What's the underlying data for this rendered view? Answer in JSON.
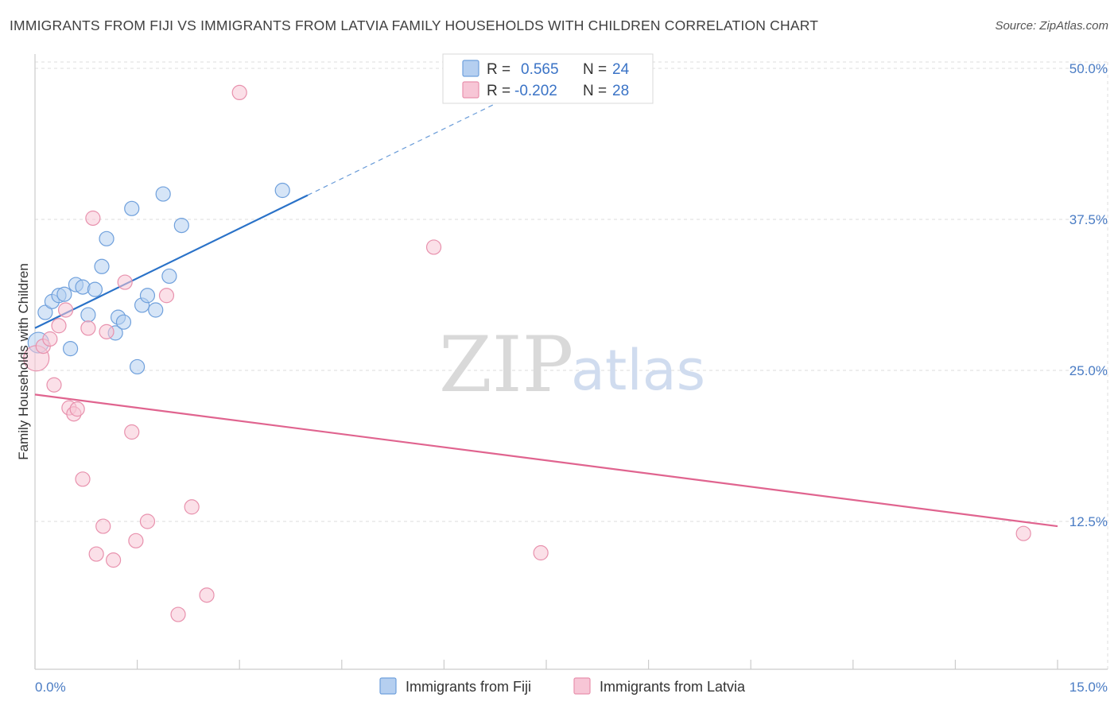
{
  "chart_data": {
    "type": "scatter",
    "title": "IMMIGRANTS FROM FIJI VS IMMIGRANTS FROM LATVIA FAMILY HOUSEHOLDS WITH CHILDREN CORRELATION CHART",
    "source": "Source: ZipAtlas.com",
    "xlabel": "",
    "ylabel": "Family Households with Children",
    "xlim": [
      0,
      15
    ],
    "ylim": [
      0,
      52
    ],
    "x_tick_labels": {
      "min": "0.0%",
      "max": "15.0%"
    },
    "x_minor_ticks": [
      0,
      1.5,
      3,
      4.5,
      6,
      7.5,
      9,
      10.5,
      12,
      13.5,
      15
    ],
    "y_ticks": [
      {
        "value": 12.5,
        "label": "12.5%"
      },
      {
        "value": 25.0,
        "label": "25.0%"
      },
      {
        "value": 37.5,
        "label": "37.5%"
      },
      {
        "value": 50.0,
        "label": "50.0%"
      }
    ],
    "grid": true,
    "watermark": {
      "zip": "ZIP",
      "atlas": "atlas"
    },
    "legend": {
      "rows": [
        {
          "r_label": "R =",
          "r_value": "0.565",
          "n_label": "N =",
          "n_value": "24"
        },
        {
          "r_label": "R =",
          "r_value": "-0.202",
          "n_label": "N =",
          "n_value": "28"
        }
      ]
    },
    "series": [
      {
        "name": "Immigrants from Fiji",
        "color": "#6fa0dc",
        "fill": "#b5cff0",
        "line_color": "#2a72c8",
        "trend": {
          "x_start": 0,
          "y_start": 28.5,
          "x_solid_end": 4.0,
          "y_solid_end": 39.5,
          "x_dash_end": 7.6,
          "y_dash_end": 49.4
        },
        "points": [
          {
            "x": 0.05,
            "y": 27.3,
            "r": 13
          },
          {
            "x": 0.15,
            "y": 29.8,
            "r": 9
          },
          {
            "x": 0.25,
            "y": 30.7,
            "r": 9
          },
          {
            "x": 0.35,
            "y": 31.2,
            "r": 9
          },
          {
            "x": 0.43,
            "y": 31.3,
            "r": 9
          },
          {
            "x": 0.52,
            "y": 26.8,
            "r": 9
          },
          {
            "x": 0.6,
            "y": 32.1,
            "r": 9
          },
          {
            "x": 0.7,
            "y": 31.9,
            "r": 9
          },
          {
            "x": 0.78,
            "y": 29.6,
            "r": 9
          },
          {
            "x": 0.88,
            "y": 31.7,
            "r": 9
          },
          {
            "x": 0.98,
            "y": 33.6,
            "r": 9
          },
          {
            "x": 1.05,
            "y": 35.9,
            "r": 9
          },
          {
            "x": 1.18,
            "y": 28.1,
            "r": 9
          },
          {
            "x": 1.22,
            "y": 29.4,
            "r": 9
          },
          {
            "x": 1.3,
            "y": 29.0,
            "r": 9
          },
          {
            "x": 1.42,
            "y": 38.4,
            "r": 9
          },
          {
            "x": 1.5,
            "y": 25.3,
            "r": 9
          },
          {
            "x": 1.57,
            "y": 30.4,
            "r": 9
          },
          {
            "x": 1.65,
            "y": 31.2,
            "r": 9
          },
          {
            "x": 1.77,
            "y": 30.0,
            "r": 9
          },
          {
            "x": 1.88,
            "y": 39.6,
            "r": 9
          },
          {
            "x": 1.97,
            "y": 32.8,
            "r": 9
          },
          {
            "x": 2.15,
            "y": 37.0,
            "r": 9
          },
          {
            "x": 3.63,
            "y": 39.9,
            "r": 9
          }
        ]
      },
      {
        "name": "Immigrants from Latvia",
        "color": "#e891ad",
        "fill": "#f7c6d6",
        "line_color": "#e0648f",
        "trend": {
          "x_start": 0,
          "y_start": 23.0,
          "x_solid_end": 15.0,
          "y_solid_end": 12.1
        },
        "points": [
          {
            "x": 0.02,
            "y": 26.0,
            "r": 16
          },
          {
            "x": 0.12,
            "y": 27.0,
            "r": 9
          },
          {
            "x": 0.22,
            "y": 27.6,
            "r": 9
          },
          {
            "x": 0.28,
            "y": 23.8,
            "r": 9
          },
          {
            "x": 0.35,
            "y": 28.7,
            "r": 9
          },
          {
            "x": 0.45,
            "y": 30.0,
            "r": 9
          },
          {
            "x": 0.5,
            "y": 21.9,
            "r": 9
          },
          {
            "x": 0.57,
            "y": 21.4,
            "r": 9
          },
          {
            "x": 0.62,
            "y": 21.8,
            "r": 9
          },
          {
            "x": 0.7,
            "y": 16.0,
            "r": 9
          },
          {
            "x": 0.78,
            "y": 28.5,
            "r": 9
          },
          {
            "x": 0.85,
            "y": 37.6,
            "r": 9
          },
          {
            "x": 0.9,
            "y": 9.8,
            "r": 9
          },
          {
            "x": 1.0,
            "y": 12.1,
            "r": 9
          },
          {
            "x": 1.05,
            "y": 28.2,
            "r": 9
          },
          {
            "x": 1.15,
            "y": 9.3,
            "r": 9
          },
          {
            "x": 1.32,
            "y": 32.3,
            "r": 9
          },
          {
            "x": 1.42,
            "y": 19.9,
            "r": 9
          },
          {
            "x": 1.48,
            "y": 10.9,
            "r": 9
          },
          {
            "x": 1.65,
            "y": 12.5,
            "r": 9
          },
          {
            "x": 1.93,
            "y": 31.2,
            "r": 9
          },
          {
            "x": 2.1,
            "y": 4.8,
            "r": 9
          },
          {
            "x": 2.3,
            "y": 13.7,
            "r": 9
          },
          {
            "x": 2.52,
            "y": 6.4,
            "r": 9
          },
          {
            "x": 3.0,
            "y": 48.0,
            "r": 9
          },
          {
            "x": 5.85,
            "y": 35.2,
            "r": 9
          },
          {
            "x": 7.42,
            "y": 9.9,
            "r": 9
          },
          {
            "x": 14.5,
            "y": 11.5,
            "r": 9
          }
        ]
      }
    ]
  }
}
